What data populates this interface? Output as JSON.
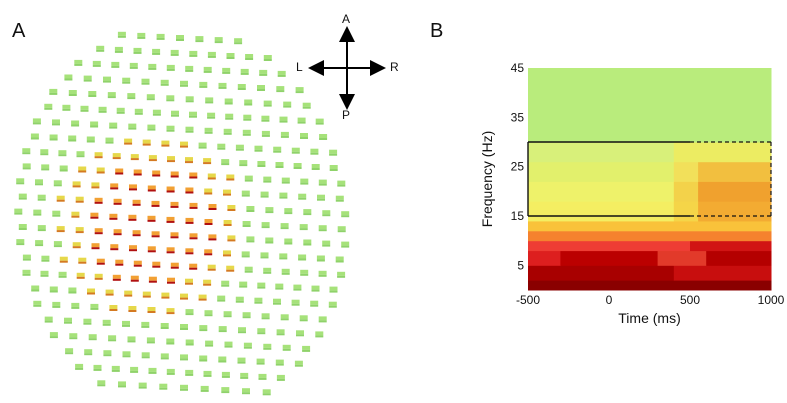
{
  "figure": {
    "panel_a_label": "A",
    "panel_b_label": "B",
    "compass": {
      "up": "A",
      "down": "P",
      "left": "L",
      "right": "R"
    }
  },
  "chart_data": {
    "type": "heatmap",
    "xlabel": "Time (ms)",
    "ylabel": "Frequency (Hz)",
    "xlim": [
      -500,
      1000
    ],
    "ylim": [
      0,
      45
    ],
    "x_ticks": [
      -500,
      0,
      500,
      1000
    ],
    "y_ticks": [
      5,
      15,
      25,
      35,
      45
    ],
    "box": {
      "t_start": -500,
      "t_end": 1000,
      "f_low": 15,
      "f_high": 30,
      "solid_until_ms": 500
    },
    "bands": [
      {
        "f": [
          0,
          2
        ],
        "seg": [
          [
            -500,
            1000,
            "#8a0000"
          ]
        ]
      },
      {
        "f": [
          2,
          5
        ],
        "seg": [
          [
            -500,
            400,
            "#a80000"
          ],
          [
            400,
            1000,
            "#c80e0e"
          ]
        ]
      },
      {
        "f": [
          5,
          8
        ],
        "seg": [
          [
            -500,
            -300,
            "#dd1f1f"
          ],
          [
            -300,
            300,
            "#bb0000"
          ],
          [
            300,
            600,
            "#e23a2a"
          ],
          [
            600,
            1000,
            "#b40000"
          ]
        ]
      },
      {
        "f": [
          8,
          10
        ],
        "seg": [
          [
            -500,
            500,
            "#ee3d34"
          ],
          [
            500,
            1000,
            "#d11414"
          ]
        ]
      },
      {
        "f": [
          10,
          12
        ],
        "seg": [
          [
            -500,
            1000,
            "#f5822e"
          ]
        ]
      },
      {
        "f": [
          12,
          14
        ],
        "seg": [
          [
            -500,
            1000,
            "#f9c23a"
          ]
        ]
      },
      {
        "f": [
          14,
          18
        ],
        "seg": [
          [
            -500,
            400,
            "#f4ee62"
          ],
          [
            400,
            550,
            "#f5d548"
          ],
          [
            550,
            1000,
            "#f3ab32"
          ]
        ]
      },
      {
        "f": [
          18,
          22
        ],
        "seg": [
          [
            -500,
            400,
            "#eef26a"
          ],
          [
            400,
            550,
            "#f3d24a"
          ],
          [
            550,
            1000,
            "#f0a12e"
          ]
        ]
      },
      {
        "f": [
          22,
          26
        ],
        "seg": [
          [
            -500,
            400,
            "#e2f06c"
          ],
          [
            400,
            550,
            "#f2e05a"
          ],
          [
            550,
            1000,
            "#f2bf3f"
          ]
        ]
      },
      {
        "f": [
          26,
          30
        ],
        "seg": [
          [
            -500,
            400,
            "#d8f07a"
          ],
          [
            400,
            1000,
            "#ecec62"
          ]
        ]
      },
      {
        "f": [
          30,
          45
        ],
        "seg": [
          [
            -500,
            1000,
            "#b9ec7c"
          ]
        ]
      }
    ]
  }
}
